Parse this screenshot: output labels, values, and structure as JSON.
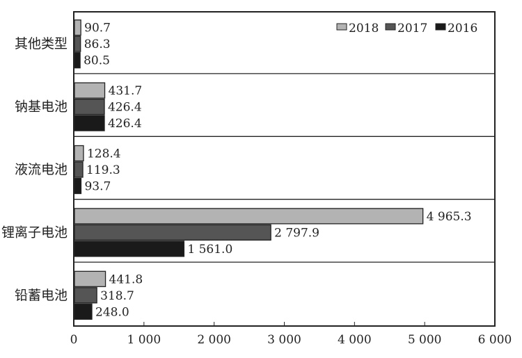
{
  "chart_data": {
    "type": "bar",
    "orientation": "horizontal",
    "title": "",
    "xlabel": "",
    "ylabel": "",
    "xlim": [
      0,
      6000
    ],
    "xticks": [
      0,
      1000,
      2000,
      3000,
      4000,
      5000,
      6000
    ],
    "xtick_labels": [
      "0",
      "1 000",
      "2 000",
      "3 000",
      "4 000",
      "5 000",
      "6 000"
    ],
    "categories": [
      "其他类型",
      "钠基电池",
      "液流电池",
      "锂离子电池",
      "铅蓄电池"
    ],
    "series": [
      {
        "name": "2018",
        "color": "#b3b3b3",
        "values": [
          90.7,
          431.7,
          128.4,
          4965.3,
          441.8
        ],
        "labels": [
          "90.7",
          "431.7",
          "128.4",
          "4 965.3",
          "441.8"
        ]
      },
      {
        "name": "2017",
        "color": "#555555",
        "values": [
          86.3,
          426.4,
          119.3,
          2797.9,
          318.7
        ],
        "labels": [
          "86.3",
          "426.4",
          "119.3",
          "2 797.9",
          "318.7"
        ]
      },
      {
        "name": "2016",
        "color": "#1a1a1a",
        "values": [
          80.5,
          426.4,
          93.7,
          1561.0,
          248.0
        ],
        "labels": [
          "80.5",
          "426.4",
          "93.7",
          "1 561.0",
          "248.0"
        ]
      }
    ],
    "legend": {
      "position": "top-right",
      "entries": [
        "2018",
        "2017",
        "2016"
      ]
    },
    "grid": false
  }
}
